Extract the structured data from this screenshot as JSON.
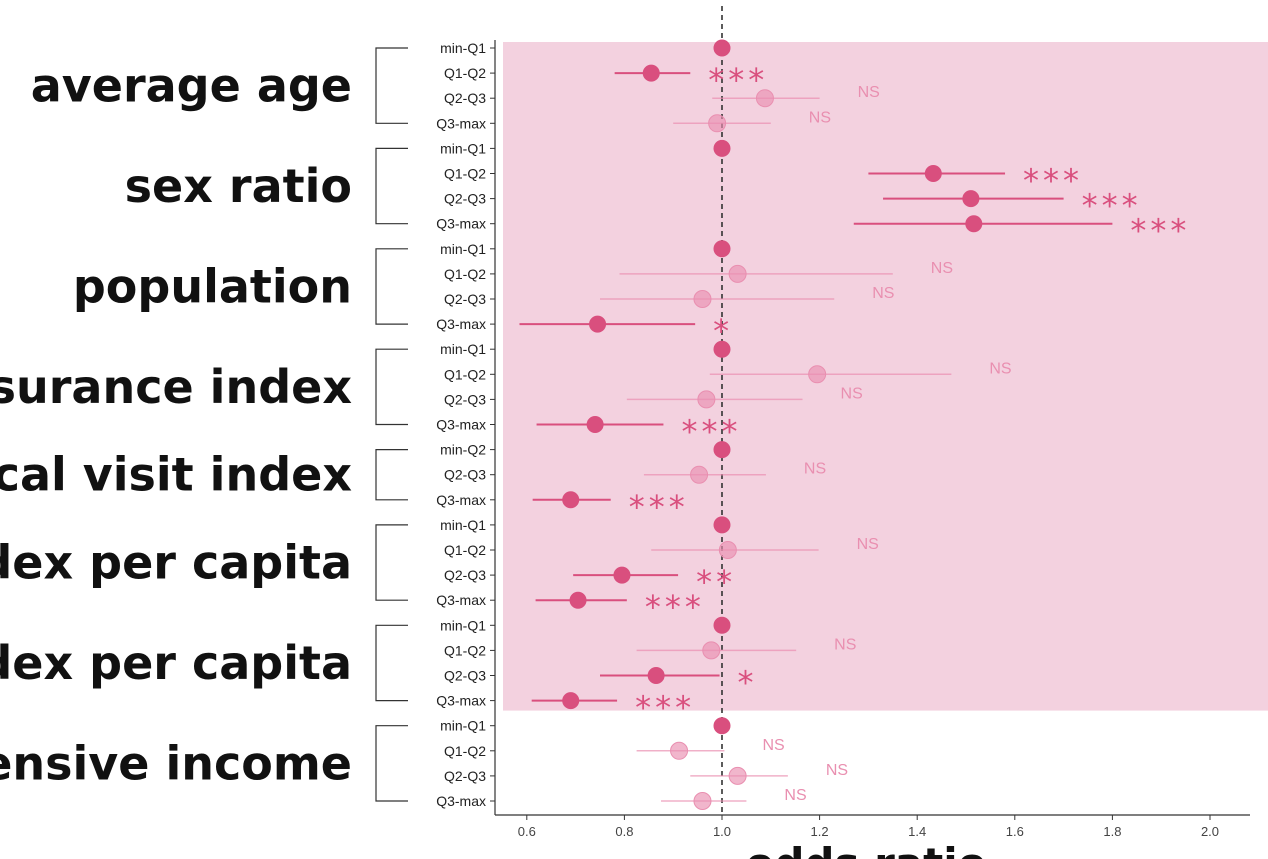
{
  "chart_data": {
    "type": "forest",
    "xlabel": "odds ratio",
    "xlim": [
      0.58,
      2.07
    ],
    "xticks": [
      0.6,
      0.8,
      1.0,
      1.2,
      1.4,
      1.6,
      1.8,
      2.0
    ],
    "xtick_labels": [
      "0.6",
      "0.8",
      "1.0",
      "1.2",
      "1.4",
      "1.6",
      "1.8",
      "2.0"
    ],
    "reference_line": 1.0,
    "colors": {
      "significant": "#d94f7e",
      "nonsignificant": "#e98fb0",
      "highlight_band": "#f3d1df"
    },
    "groups": [
      {
        "label": "average age",
        "highlighted": true,
        "rows": [
          {
            "cat": "min-Q1",
            "or": 1.0,
            "lo": 1.0,
            "hi": 1.0,
            "sig": ""
          },
          {
            "cat": "Q1-Q2",
            "or": 0.855,
            "lo": 0.78,
            "hi": 0.935,
            "sig": "***"
          },
          {
            "cat": "Q2-Q3",
            "or": 1.088,
            "lo": 0.98,
            "hi": 1.2,
            "sig": "NS"
          },
          {
            "cat": "Q3-max",
            "or": 0.99,
            "lo": 0.9,
            "hi": 1.1,
            "sig": "NS"
          }
        ]
      },
      {
        "label": "sex ratio",
        "highlighted": true,
        "rows": [
          {
            "cat": "min-Q1",
            "or": 1.0,
            "lo": 1.0,
            "hi": 1.0,
            "sig": ""
          },
          {
            "cat": "Q1-Q2",
            "or": 1.433,
            "lo": 1.3,
            "hi": 1.58,
            "sig": "***"
          },
          {
            "cat": "Q2-Q3",
            "or": 1.51,
            "lo": 1.33,
            "hi": 1.7,
            "sig": "***"
          },
          {
            "cat": "Q3-max",
            "or": 1.516,
            "lo": 1.27,
            "hi": 1.8,
            "sig": "***"
          }
        ]
      },
      {
        "label": "population",
        "highlighted": true,
        "rows": [
          {
            "cat": "min-Q1",
            "or": 1.0,
            "lo": 1.0,
            "hi": 1.0,
            "sig": ""
          },
          {
            "cat": "Q1-Q2",
            "or": 1.032,
            "lo": 0.79,
            "hi": 1.35,
            "sig": "NS"
          },
          {
            "cat": "Q2-Q3",
            "or": 0.96,
            "lo": 0.75,
            "hi": 1.23,
            "sig": "NS"
          },
          {
            "cat": "Q3-max",
            "or": 0.745,
            "lo": 0.585,
            "hi": 0.945,
            "sig": "*"
          }
        ]
      },
      {
        "label": "surance index",
        "highlighted": true,
        "rows": [
          {
            "cat": "min-Q1",
            "or": 1.0,
            "lo": 1.0,
            "hi": 1.0,
            "sig": ""
          },
          {
            "cat": "Q1-Q2",
            "or": 1.195,
            "lo": 0.975,
            "hi": 1.47,
            "sig": "NS"
          },
          {
            "cat": "Q2-Q3",
            "or": 0.968,
            "lo": 0.805,
            "hi": 1.165,
            "sig": "NS"
          },
          {
            "cat": "Q3-max",
            "or": 0.74,
            "lo": 0.62,
            "hi": 0.88,
            "sig": "***"
          }
        ]
      },
      {
        "label": "cal visit index",
        "highlighted": true,
        "rows": [
          {
            "cat": "min-Q2",
            "or": 1.0,
            "lo": 1.0,
            "hi": 1.0,
            "sig": ""
          },
          {
            "cat": "Q2-Q3",
            "or": 0.953,
            "lo": 0.84,
            "hi": 1.09,
            "sig": "NS"
          },
          {
            "cat": "Q3-max",
            "or": 0.69,
            "lo": 0.612,
            "hi": 0.772,
            "sig": "***"
          }
        ]
      },
      {
        "label": "dex per capita",
        "highlighted": true,
        "rows": [
          {
            "cat": "min-Q1",
            "or": 1.0,
            "lo": 1.0,
            "hi": 1.0,
            "sig": ""
          },
          {
            "cat": "Q1-Q2",
            "or": 1.012,
            "lo": 0.855,
            "hi": 1.198,
            "sig": "NS"
          },
          {
            "cat": "Q2-Q3",
            "or": 0.795,
            "lo": 0.695,
            "hi": 0.91,
            "sig": "**"
          },
          {
            "cat": "Q3-max",
            "or": 0.705,
            "lo": 0.618,
            "hi": 0.805,
            "sig": "***"
          }
        ]
      },
      {
        "label": "dex per capita",
        "highlighted": true,
        "rows": [
          {
            "cat": "min-Q1",
            "or": 1.0,
            "lo": 1.0,
            "hi": 1.0,
            "sig": ""
          },
          {
            "cat": "Q1-Q2",
            "or": 0.978,
            "lo": 0.825,
            "hi": 1.152,
            "sig": "NS"
          },
          {
            "cat": "Q2-Q3",
            "or": 0.865,
            "lo": 0.75,
            "hi": 0.995,
            "sig": "*"
          },
          {
            "cat": "Q3-max",
            "or": 0.69,
            "lo": 0.61,
            "hi": 0.785,
            "sig": "***"
          }
        ]
      },
      {
        "label": "ensive income",
        "highlighted": false,
        "rows": [
          {
            "cat": "min-Q1",
            "or": 1.0,
            "lo": 1.0,
            "hi": 1.0,
            "sig": ""
          },
          {
            "cat": "Q1-Q2",
            "or": 0.912,
            "lo": 0.825,
            "hi": 1.005,
            "sig": "NS"
          },
          {
            "cat": "Q2-Q3",
            "or": 1.032,
            "lo": 0.935,
            "hi": 1.135,
            "sig": "NS"
          },
          {
            "cat": "Q3-max",
            "or": 0.96,
            "lo": 0.875,
            "hi": 1.05,
            "sig": "NS"
          }
        ]
      }
    ]
  }
}
